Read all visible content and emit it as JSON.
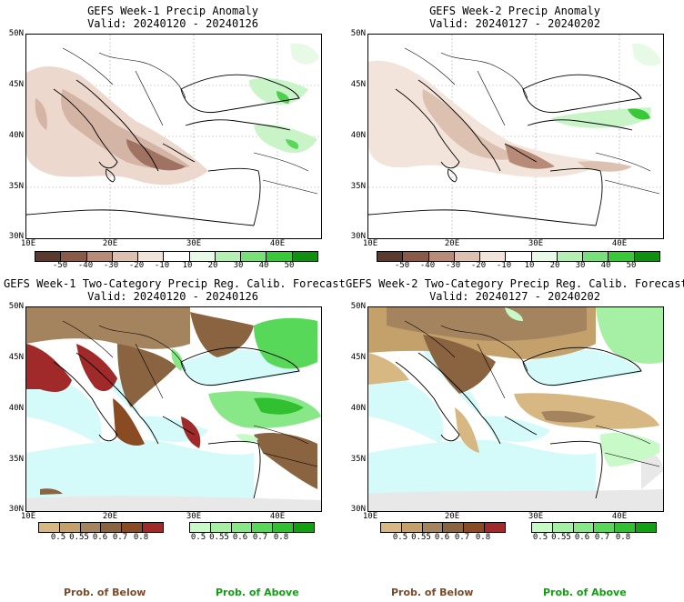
{
  "panels": [
    {
      "title1": "GEFS Week-1 Precip Anomaly",
      "title2": "Valid: 20240120 - 20240126"
    },
    {
      "title1": "GEFS Week-2 Precip Anomaly",
      "title2": "Valid: 20240127 - 20240202"
    },
    {
      "title1": "GEFS Week-1 Two-Category Precip Reg. Calib. Forecast",
      "title2": "Valid: 20240120 - 20240126"
    },
    {
      "title1": "GEFS Week-2 Two-Category Precip Reg. Calib. Forecast",
      "title2": "Valid: 20240127 - 20240202"
    }
  ],
  "axes": {
    "lat_labels": [
      "50N",
      "45N",
      "40N",
      "35N",
      "30N"
    ],
    "lon_labels": [
      "10E",
      "20E",
      "30E",
      "40E"
    ]
  },
  "anomaly_colorbar": {
    "labels": [
      "-50",
      "-40",
      "-30",
      "-20",
      "-10",
      "10",
      "20",
      "30",
      "40",
      "50"
    ],
    "colors": [
      "#5a3a2e",
      "#8a5a48",
      "#b88a78",
      "#dcc0b0",
      "#f2e4da",
      "#ffffff",
      "#e6fae6",
      "#b4f0b4",
      "#78e078",
      "#38c838",
      "#109010"
    ]
  },
  "below_colorbar": {
    "labels": [
      "0.5",
      "0.55",
      "0.6",
      "0.7",
      "0.8"
    ],
    "colors": [
      "#d7b882",
      "#c4a06a",
      "#a4845e",
      "#8a6440",
      "#8a4a22",
      "#a02a2a"
    ]
  },
  "above_colorbar": {
    "labels": [
      "0.5",
      "0.55",
      "0.6",
      "0.7",
      "0.8"
    ],
    "colors": [
      "#c8fac8",
      "#a6f0a6",
      "#88e888",
      "#58d858",
      "#30c030",
      "#10a010"
    ]
  },
  "footer": {
    "below": "Prob. of Below",
    "above": "Prob. of Above",
    "below_color": "#7a4a2a",
    "above_color": "#10a010"
  },
  "map_colors": {
    "sea": "#d4fafa",
    "land_na": "#e8e8e8"
  }
}
